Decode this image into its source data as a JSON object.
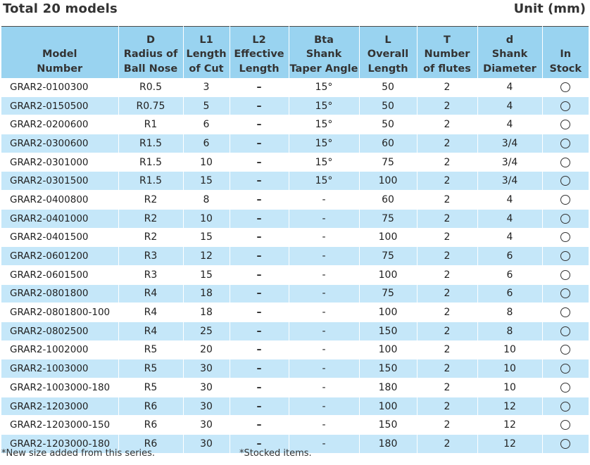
{
  "header": {
    "title": "Total 20 models",
    "unit": "Unit (mm)"
  },
  "table": {
    "columns": [
      {
        "symbol": "",
        "lines": [
          "Model",
          "Number"
        ]
      },
      {
        "symbol": "D",
        "lines": [
          "Radius of",
          "Ball Nose"
        ]
      },
      {
        "symbol": "L1",
        "lines": [
          "Length",
          "of Cut"
        ]
      },
      {
        "symbol": "L2",
        "lines": [
          "Effective",
          "Length"
        ]
      },
      {
        "symbol": "Bta",
        "lines": [
          "Shank",
          "Taper Angle"
        ]
      },
      {
        "symbol": "L",
        "lines": [
          "Overall",
          "Length"
        ]
      },
      {
        "symbol": "T",
        "lines": [
          "Number",
          "of flutes"
        ]
      },
      {
        "symbol": "d",
        "lines": [
          "Shank",
          "Diameter"
        ]
      },
      {
        "symbol": "",
        "lines": [
          "In",
          "Stock"
        ]
      }
    ],
    "rows": [
      {
        "model": "GRAR2-0100300",
        "D": "R0.5",
        "L1": "3",
        "L2": "–",
        "Bta": "15°",
        "L": "50",
        "T": "2",
        "d": "4",
        "stock": "○"
      },
      {
        "model": "GRAR2-0150500",
        "D": "R0.75",
        "L1": "5",
        "L2": "–",
        "Bta": "15°",
        "L": "50",
        "T": "2",
        "d": "4",
        "stock": "○"
      },
      {
        "model": "GRAR2-0200600",
        "D": "R1",
        "L1": "6",
        "L2": "–",
        "Bta": "15°",
        "L": "50",
        "T": "2",
        "d": "4",
        "stock": "○"
      },
      {
        "model": "GRAR2-0300600",
        "D": "R1.5",
        "L1": "6",
        "L2": "–",
        "Bta": "15°",
        "L": "60",
        "T": "2",
        "d": "3/4",
        "stock": "○"
      },
      {
        "model": "GRAR2-0301000",
        "D": "R1.5",
        "L1": "10",
        "L2": "–",
        "Bta": "15°",
        "L": "75",
        "T": "2",
        "d": "3/4",
        "stock": "○"
      },
      {
        "model": "GRAR2-0301500",
        "D": "R1.5",
        "L1": "15",
        "L2": "–",
        "Bta": "15°",
        "L": "100",
        "T": "2",
        "d": "3/4",
        "stock": "○"
      },
      {
        "model": "GRAR2-0400800",
        "D": "R2",
        "L1": "8",
        "L2": "–",
        "Bta": "-",
        "L": "60",
        "T": "2",
        "d": "4",
        "stock": "○"
      },
      {
        "model": "GRAR2-0401000",
        "D": "R2",
        "L1": "10",
        "L2": "–",
        "Bta": "-",
        "L": "75",
        "T": "2",
        "d": "4",
        "stock": "○"
      },
      {
        "model": "GRAR2-0401500",
        "D": "R2",
        "L1": "15",
        "L2": "–",
        "Bta": "-",
        "L": "100",
        "T": "2",
        "d": "4",
        "stock": "○"
      },
      {
        "model": "GRAR2-0601200",
        "D": "R3",
        "L1": "12",
        "L2": "–",
        "Bta": "-",
        "L": "75",
        "T": "2",
        "d": "6",
        "stock": "○"
      },
      {
        "model": "GRAR2-0601500",
        "D": "R3",
        "L1": "15",
        "L2": "–",
        "Bta": "-",
        "L": "100",
        "T": "2",
        "d": "6",
        "stock": "○"
      },
      {
        "model": "GRAR2-0801800",
        "D": "R4",
        "L1": "18",
        "L2": "–",
        "Bta": "-",
        "L": "75",
        "T": "2",
        "d": "6",
        "stock": "○"
      },
      {
        "model": "GRAR2-0801800-100",
        "D": "R4",
        "L1": "18",
        "L2": "–",
        "Bta": "-",
        "L": "100",
        "T": "2",
        "d": "8",
        "stock": "○"
      },
      {
        "model": "GRAR2-0802500",
        "D": "R4",
        "L1": "25",
        "L2": "–",
        "Bta": "-",
        "L": "150",
        "T": "2",
        "d": "8",
        "stock": "○"
      },
      {
        "model": "GRAR2-1002000",
        "D": "R5",
        "L1": "20",
        "L2": "–",
        "Bta": "-",
        "L": "100",
        "T": "2",
        "d": "10",
        "stock": "○"
      },
      {
        "model": "GRAR2-1003000",
        "D": "R5",
        "L1": "30",
        "L2": "–",
        "Bta": "-",
        "L": "150",
        "T": "2",
        "d": "10",
        "stock": "○"
      },
      {
        "model": "GRAR2-1003000-180",
        "D": "R5",
        "L1": "30",
        "L2": "–",
        "Bta": "-",
        "L": "180",
        "T": "2",
        "d": "10",
        "stock": "○"
      },
      {
        "model": "GRAR2-1203000",
        "D": "R6",
        "L1": "30",
        "L2": "–",
        "Bta": "-",
        "L": "100",
        "T": "2",
        "d": "12",
        "stock": "○"
      },
      {
        "model": "GRAR2-1203000-150",
        "D": "R6",
        "L1": "30",
        "L2": "–",
        "Bta": "-",
        "L": "150",
        "T": "2",
        "d": "12",
        "stock": "○"
      },
      {
        "model": "GRAR2-1203000-180",
        "D": "R6",
        "L1": "30",
        "L2": "–",
        "Bta": "-",
        "L": "180",
        "T": "2",
        "d": "12",
        "stock": "○"
      }
    ]
  },
  "footnotes": {
    "left": "*New size added from this series.",
    "right": "*Stocked items."
  },
  "colors": {
    "header_bg": "#99d3f0",
    "alt_row_bg": "#c5e7f9",
    "text": "#222222"
  }
}
